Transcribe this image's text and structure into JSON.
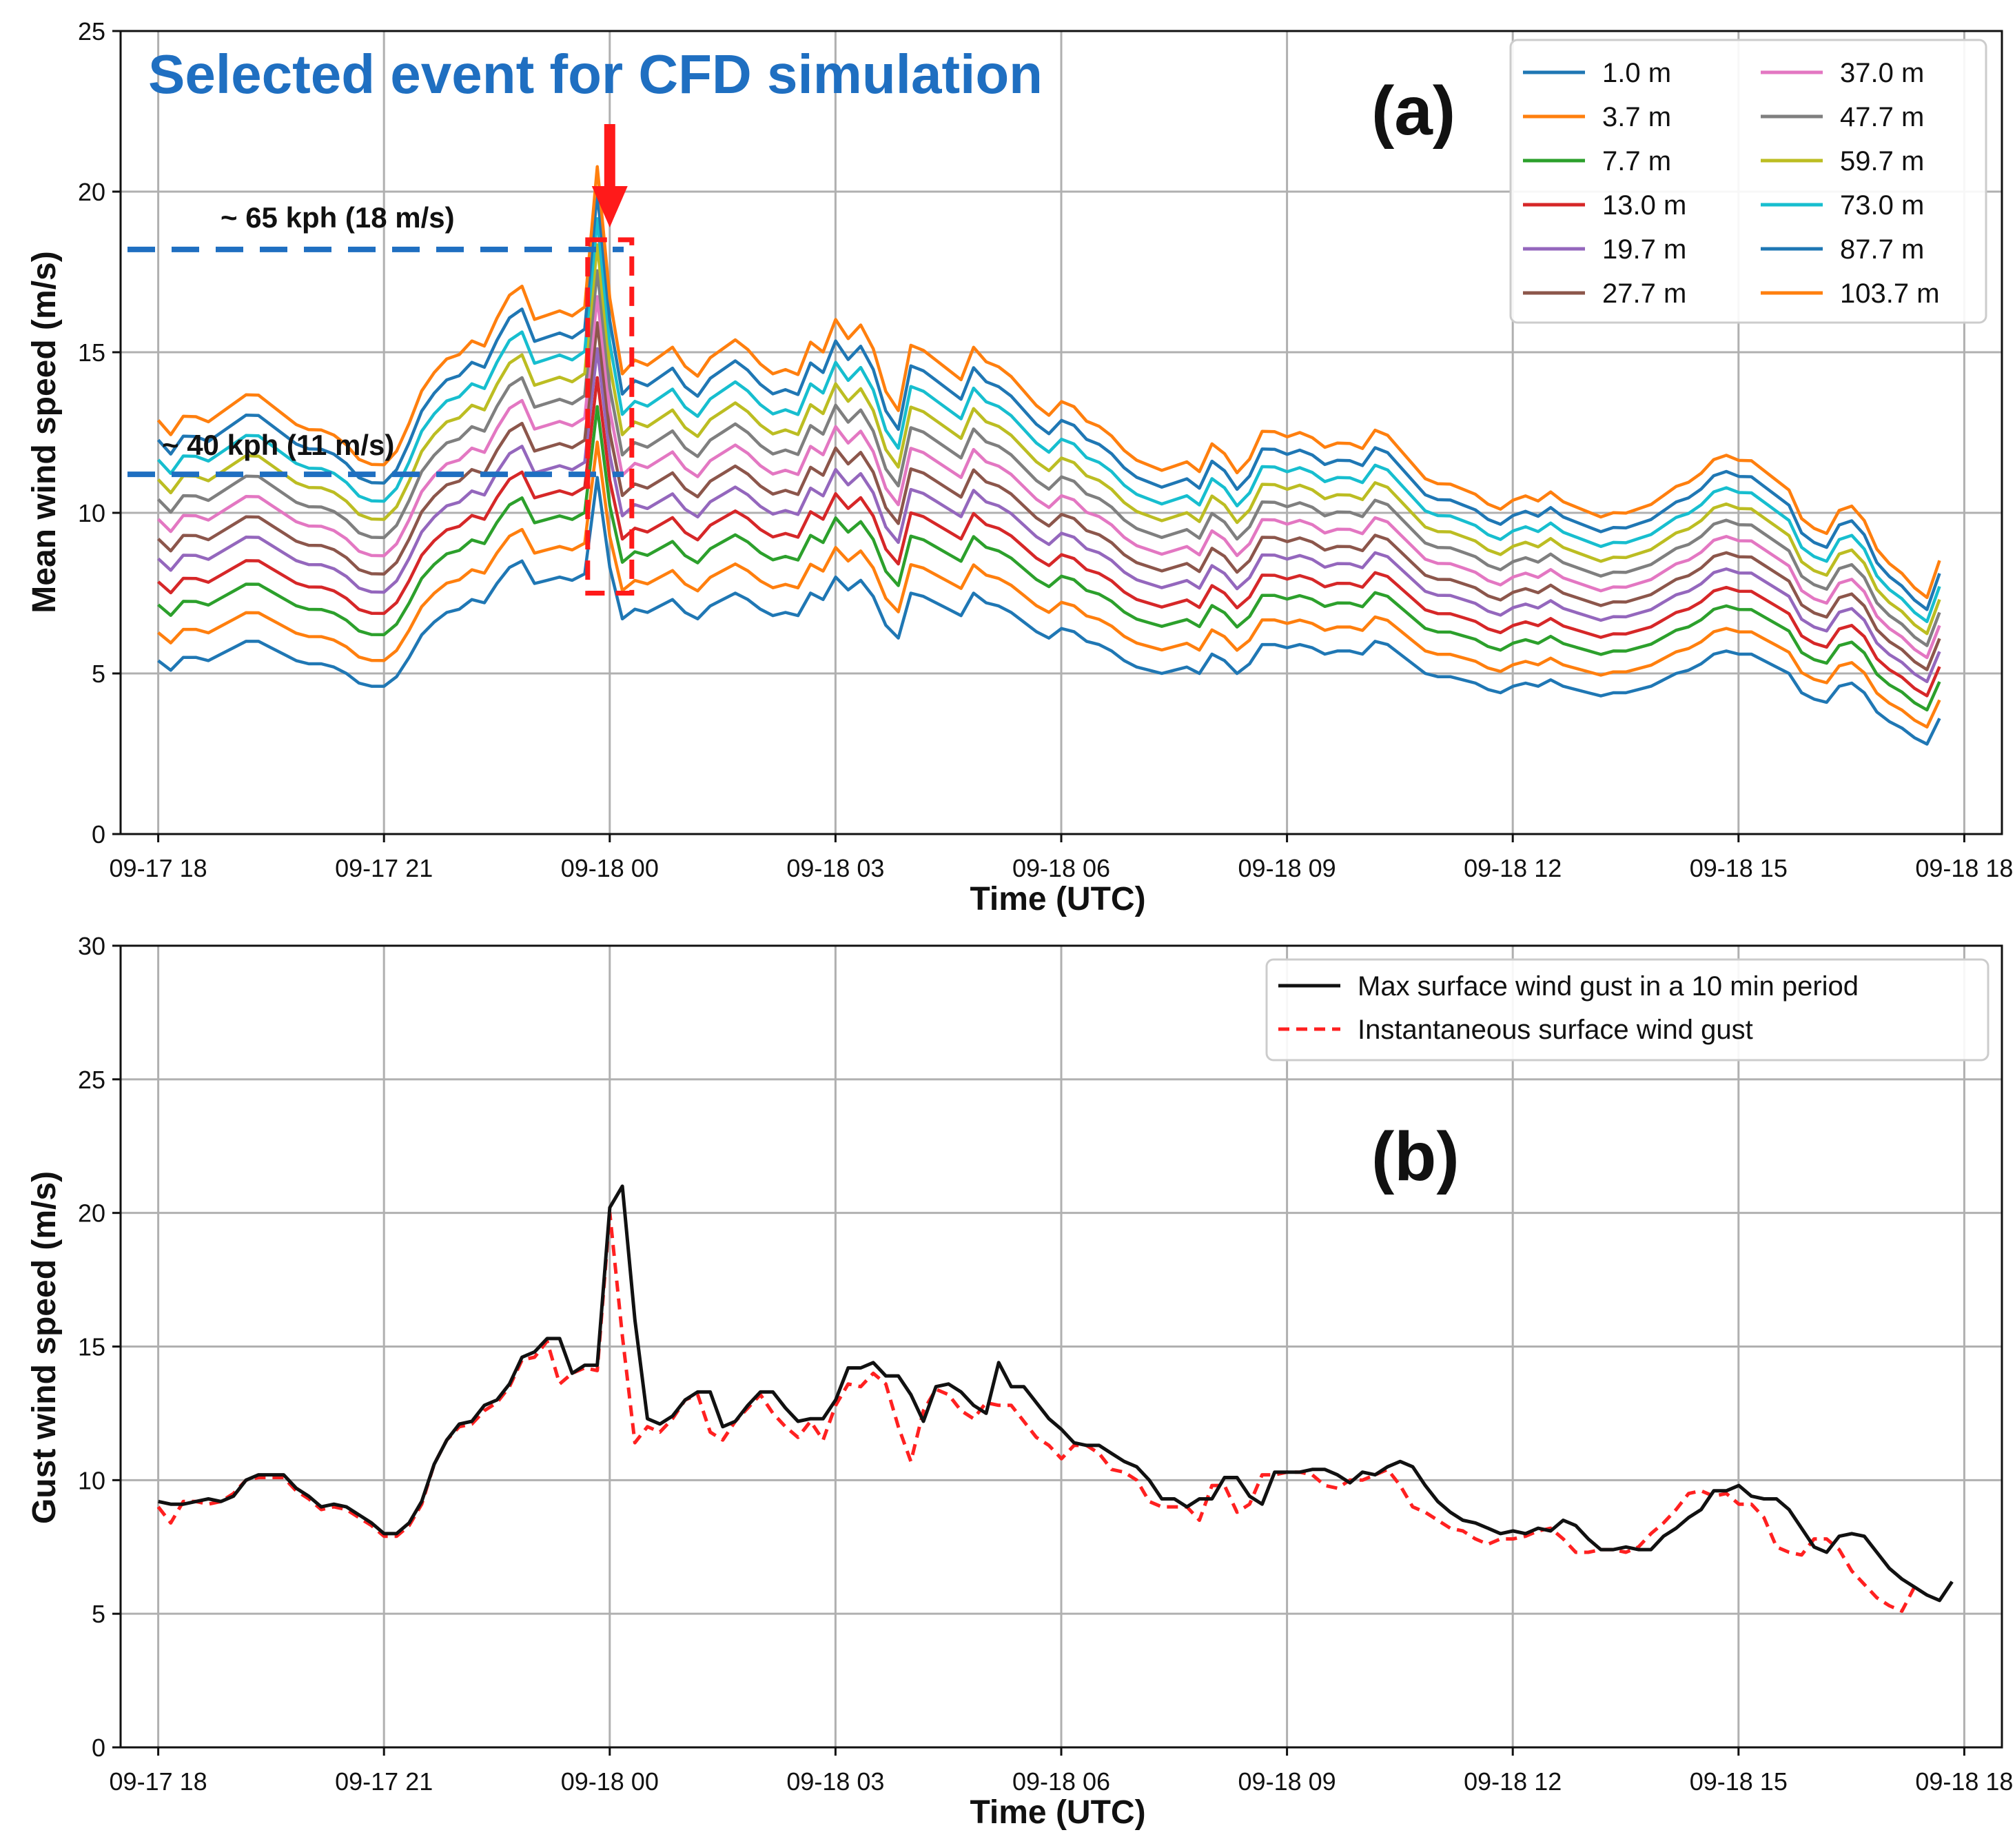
{
  "colors": {
    "annotation_blue": "#1f6fc1",
    "marker_red": "#ff1a1a",
    "gust_max_color": "#111111",
    "gust_inst_color": "#ff2020",
    "grid": "#b0b0b0",
    "heights": [
      "#1f77b4",
      "#ff7f0e",
      "#2ca02c",
      "#d62728",
      "#9467bd",
      "#8c564b",
      "#e377c2",
      "#7f7f7f",
      "#bcbd22",
      "#17becf",
      "#1f77b4",
      "#ff7f0e"
    ]
  },
  "annotations": {
    "headline": "Selected event for CFD simulation",
    "high_line_label": "~ 65 kph (18 m/s)",
    "high_line_value": 18.2,
    "low_line_label": "~ 40 kph (11 m/s)",
    "low_line_value": 11.2,
    "event_time_hours": 6.0,
    "event_box_speed_range": [
      7.5,
      18.5
    ]
  },
  "chart_data": [
    {
      "type": "line",
      "panel": "(a)",
      "xlabel": "Time (UTC)",
      "ylabel": "Mean wind speed (m/s)",
      "xlim_hours": [
        -0.5,
        24.5
      ],
      "ylim": [
        0,
        25
      ],
      "yticks": [
        0,
        5,
        10,
        15,
        20,
        25
      ],
      "xticks_hours": [
        0,
        3,
        6,
        9,
        12,
        15,
        18,
        21,
        24
      ],
      "xtick_labels": [
        "09-17 18",
        "09-17 21",
        "09-18 00",
        "09-18 03",
        "09-18 06",
        "09-18 09",
        "09-18 12",
        "09-18 15",
        "09-18 18"
      ],
      "legend": [
        "1.0 m",
        "3.7 m",
        "7.7 m",
        "13.0 m",
        "19.7 m",
        "27.7 m",
        "37.0 m",
        "47.7 m",
        "59.7 m",
        "73.0 m",
        "87.7 m",
        "103.7 m"
      ],
      "legend_position": "top-right",
      "grid": true,
      "time_step_hours": 0.1667,
      "base_series_1m": [
        5.4,
        5.1,
        5.5,
        5.5,
        5.4,
        5.6,
        5.8,
        6.0,
        6.0,
        5.8,
        5.6,
        5.4,
        5.3,
        5.3,
        5.2,
        5.0,
        4.7,
        4.6,
        4.6,
        4.9,
        5.5,
        6.2,
        6.6,
        6.9,
        7.0,
        7.3,
        7.2,
        7.8,
        8.3,
        8.5,
        7.8,
        7.9,
        8.0,
        7.9,
        8.1,
        11.1,
        8.3,
        6.7,
        7.0,
        6.9,
        7.1,
        7.3,
        6.9,
        6.7,
        7.1,
        7.3,
        7.5,
        7.3,
        7.0,
        6.8,
        6.9,
        6.8,
        7.5,
        7.3,
        8.0,
        7.6,
        7.9,
        7.4,
        6.5,
        6.1,
        7.5,
        7.4,
        7.2,
        7.0,
        6.8,
        7.5,
        7.2,
        7.1,
        6.9,
        6.6,
        6.3,
        6.1,
        6.4,
        6.3,
        6.0,
        5.9,
        5.7,
        5.4,
        5.2,
        5.1,
        5.0,
        5.1,
        5.2,
        5.0,
        5.6,
        5.4,
        5.0,
        5.3,
        5.9,
        5.9,
        5.8,
        5.9,
        5.8,
        5.6,
        5.7,
        5.7,
        5.6,
        6.0,
        5.9,
        5.6,
        5.3,
        5.0,
        4.9,
        4.9,
        4.8,
        4.7,
        4.5,
        4.4,
        4.6,
        4.7,
        4.6,
        4.8,
        4.6,
        4.5,
        4.4,
        4.3,
        4.4,
        4.4,
        4.5,
        4.6,
        4.8,
        5.0,
        5.1,
        5.3,
        5.6,
        5.7,
        5.6,
        5.6,
        5.4,
        5.2,
        5.0,
        4.4,
        4.2,
        4.1,
        4.6,
        4.7,
        4.4,
        3.8,
        3.5,
        3.3,
        3.0,
        2.8,
        3.6
      ],
      "height_offsets": [
        0.0,
        0.6,
        1.2,
        1.7,
        2.2,
        2.6,
        3.0,
        3.4,
        3.8,
        4.2,
        4.6,
        5.0
      ],
      "height_gains": [
        1.0,
        1.05,
        1.1,
        1.14,
        1.18,
        1.22,
        1.26,
        1.3,
        1.34,
        1.38,
        1.42,
        1.46
      ]
    },
    {
      "type": "line",
      "panel": "(b)",
      "xlabel": "Time (UTC)",
      "ylabel": "Gust wind speed (m/s)",
      "xlim_hours": [
        -0.5,
        24.5
      ],
      "ylim": [
        0,
        30
      ],
      "yticks": [
        0,
        5,
        10,
        15,
        20,
        25,
        30
      ],
      "xticks_hours": [
        0,
        3,
        6,
        9,
        12,
        15,
        18,
        21,
        24
      ],
      "xtick_labels": [
        "09-17 18",
        "09-17 21",
        "09-18 00",
        "09-18 03",
        "09-18 06",
        "09-18 09",
        "09-18 12",
        "09-18 15",
        "09-18 18"
      ],
      "legend_position": "top-right",
      "grid": true,
      "time_step_hours": 0.1667,
      "series": [
        {
          "name": "Max surface wind gust in a 10 min period",
          "style": "solid",
          "values": [
            9.2,
            9.1,
            9.1,
            9.2,
            9.3,
            9.2,
            9.4,
            10.0,
            10.2,
            10.2,
            10.2,
            9.7,
            9.4,
            9.0,
            9.1,
            9.0,
            8.7,
            8.4,
            8.0,
            8.0,
            8.4,
            9.2,
            10.6,
            11.5,
            12.1,
            12.2,
            12.8,
            13.0,
            13.6,
            14.6,
            14.8,
            15.3,
            15.3,
            14.0,
            14.3,
            14.3,
            20.2,
            21.0,
            16.0,
            12.3,
            12.1,
            12.4,
            13.0,
            13.3,
            13.3,
            12.0,
            12.2,
            12.8,
            13.3,
            13.3,
            12.7,
            12.2,
            12.3,
            12.3,
            13.0,
            14.2,
            14.2,
            14.4,
            13.9,
            13.9,
            13.2,
            12.2,
            13.5,
            13.6,
            13.3,
            12.8,
            12.5,
            14.4,
            13.5,
            13.5,
            12.9,
            12.3,
            11.9,
            11.4,
            11.3,
            11.3,
            11.0,
            10.7,
            10.5,
            10.0,
            9.3,
            9.3,
            9.0,
            9.3,
            9.3,
            10.1,
            10.1,
            9.4,
            9.1,
            10.3,
            10.3,
            10.3,
            10.4,
            10.4,
            10.2,
            9.9,
            10.3,
            10.2,
            10.5,
            10.7,
            10.5,
            9.8,
            9.2,
            8.8,
            8.5,
            8.4,
            8.2,
            8.0,
            8.1,
            8.0,
            8.2,
            8.1,
            8.5,
            8.3,
            7.8,
            7.4,
            7.4,
            7.5,
            7.4,
            7.4,
            7.9,
            8.2,
            8.6,
            8.9,
            9.6,
            9.6,
            9.8,
            9.4,
            9.3,
            9.3,
            8.9,
            8.2,
            7.5,
            7.3,
            7.9,
            8.0,
            7.9,
            7.3,
            6.7,
            6.3,
            6.0,
            5.7,
            5.5,
            6.2
          ]
        },
        {
          "name": "Instantaneous surface wind gust",
          "style": "dashed",
          "values": [
            9.0,
            8.4,
            9.2,
            9.2,
            9.1,
            9.2,
            9.5,
            10.0,
            10.1,
            10.1,
            10.1,
            9.6,
            9.3,
            8.9,
            9.0,
            8.9,
            8.6,
            8.3,
            7.9,
            7.9,
            8.3,
            9.1,
            10.6,
            11.5,
            12.0,
            12.1,
            12.6,
            12.9,
            13.5,
            14.5,
            14.6,
            15.2,
            13.6,
            14.0,
            14.2,
            14.1,
            20.0,
            15.4,
            11.4,
            12.0,
            11.8,
            12.3,
            13.0,
            13.2,
            11.8,
            11.5,
            12.2,
            12.7,
            13.2,
            12.5,
            12.0,
            11.6,
            12.2,
            11.5,
            12.8,
            13.6,
            13.5,
            14.0,
            13.6,
            12.0,
            10.7,
            12.6,
            13.4,
            13.2,
            12.6,
            12.3,
            12.9,
            12.8,
            12.8,
            12.2,
            11.6,
            11.3,
            10.8,
            11.3,
            11.3,
            11.0,
            10.4,
            10.3,
            10.0,
            9.2,
            9.0,
            9.0,
            9.0,
            8.5,
            9.8,
            9.8,
            8.8,
            9.1,
            10.2,
            10.2,
            10.3,
            10.3,
            10.2,
            9.8,
            9.7,
            10.0,
            10.0,
            10.2,
            10.4,
            9.8,
            9.0,
            8.8,
            8.5,
            8.2,
            8.1,
            7.8,
            7.6,
            7.8,
            7.8,
            7.9,
            8.1,
            8.2,
            7.8,
            7.3,
            7.3,
            7.4,
            7.4,
            7.3,
            7.5,
            8.0,
            8.4,
            8.9,
            9.5,
            9.6,
            9.4,
            9.5,
            9.1,
            9.1,
            8.6,
            7.5,
            7.3,
            7.2,
            7.8,
            7.8,
            7.4,
            6.6,
            6.1,
            5.6,
            5.3,
            5.1,
            6.0
          ]
        }
      ]
    }
  ]
}
